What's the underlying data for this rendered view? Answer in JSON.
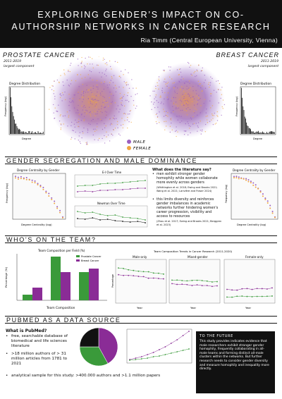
{
  "header": {
    "title_line1": "EXPLORING GENDER’S IMPACT ON CO-",
    "title_line2": "AUTHORSHIP NETWORKS IN CANCER RESEARCH",
    "author": "Ria Timm (Central European University, Vienna)"
  },
  "networks": {
    "prostate": {
      "label": "PROSTATE CANCER",
      "years": "2011-2019",
      "component": "largest component"
    },
    "breast": {
      "label": "BREAST CANCER",
      "years": "2011-2019",
      "component": "largest component"
    },
    "legend_male": "MALE",
    "legend_female": "FEMALE",
    "male_color": "#9b5fc0",
    "female_color": "#f0a640"
  },
  "degree_dist": {
    "title": "Degree Distribution",
    "ylabel": "Frequency (log)",
    "xlabel": "Degree"
  },
  "sections": {
    "s1": "GENDER SEGREGATION AND MALE DOMINANCE",
    "s2": "WHO’S ON THE TEAM?",
    "s3": "PUBMED AS A DATA SOURCE"
  },
  "segregation": {
    "left_chart_title": "Degree Centrality by Gender",
    "left_ylabel": "Frequency (log)",
    "left_xlabel": "Degree Centrality (log)",
    "right_chart_title": "Degree Centrality by Gender",
    "right_ylabel": "Frequency (log)",
    "right_xlabel": "Degree Centrality (log)",
    "ei_title": "E-I Over Time",
    "newman_title": "Newman Over Time",
    "lit_title": "What does the literature say?",
    "lit_bullet1": "men exhibit stronger gender homophily while women collaborate more evenly across genders",
    "lit_ref1": "(Whittington et al. 2018; Ewing and Brooks 2021; Wang et al. 2021; Larivière and Fraser 2024)",
    "lit_bullet2": "this limits diversity and reinforces gender imbalances in academic networks further hindering women's career progression, visibility and access to resources",
    "lit_ref2": "(Zhou et al. 2017; Ewing and Brooks 2021; Berggren et al. 2023)"
  },
  "team": {
    "bar_title": "Team Composition per Field (%)",
    "bar_ylabel": "Percentage (%)",
    "bar_xlabel": "Team Composition",
    "legend_prostate": "Prostate Cancer",
    "legend_breast": "Breast Cancer",
    "prostate_color": "#3a9a3a",
    "breast_color": "#8a2c96",
    "trends_title": "Team Composition Trends in Cancer Research (2011-2020)",
    "panel_male": "Male-only",
    "panel_mixed": "Mixed-gender",
    "panel_female": "Female-only",
    "xlabel_year": "Year",
    "ylabel_pct": "Percentage"
  },
  "pubmed": {
    "what_is": "What is PubMed?",
    "bullet1": "free, searchable database of biomedical and life sciences literature",
    "bullet2": ">18 million authors of > 31 million articles from 1781 to 2021",
    "bullet3": "analytical sample for this study: >400.000 authors and >1.1 million papers"
  },
  "future": {
    "title": "TO THE FUTURE",
    "body": "This study provides indicates evidence that male researchers exhibit stronger gender homophily, frequently collaborating in all-male teams and forming distinct all-male clusters within the networks. But further research needs to consider gender diversity and measure homophily and inequality more directly."
  }
}
